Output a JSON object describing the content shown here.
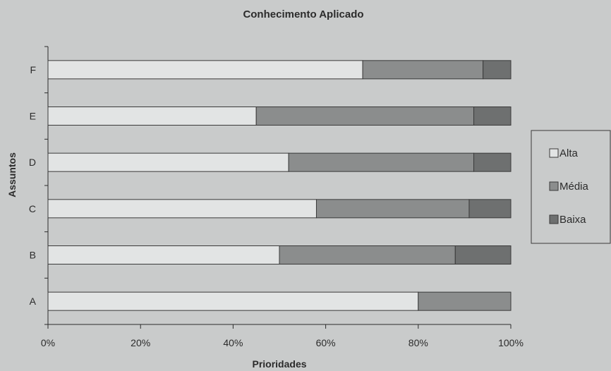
{
  "chart_data": {
    "type": "bar",
    "orientation": "horizontal",
    "stacked": "percent",
    "title": "Conhecimento Aplicado",
    "xlabel": "Prioridades",
    "ylabel": "Assuntos",
    "categories": [
      "A",
      "B",
      "C",
      "D",
      "E",
      "F"
    ],
    "xlim": [
      0,
      100
    ],
    "x_ticks": [
      "0%",
      "20%",
      "40%",
      "60%",
      "80%",
      "100%"
    ],
    "series": [
      {
        "name": "Alta",
        "values": [
          80,
          50,
          58,
          52,
          45,
          68
        ]
      },
      {
        "name": "Média",
        "values": [
          20,
          38,
          33,
          40,
          47,
          26
        ]
      },
      {
        "name": "Baixa",
        "values": [
          0,
          12,
          9,
          8,
          8,
          6
        ]
      }
    ],
    "colors": {
      "Alta": "#e2e4e4",
      "Média": "#8b8d8d",
      "Baixa": "#6e7070",
      "background": "#c9cbcb",
      "axis": "#2b2b2b"
    },
    "grid": false,
    "legend_position": "right"
  }
}
